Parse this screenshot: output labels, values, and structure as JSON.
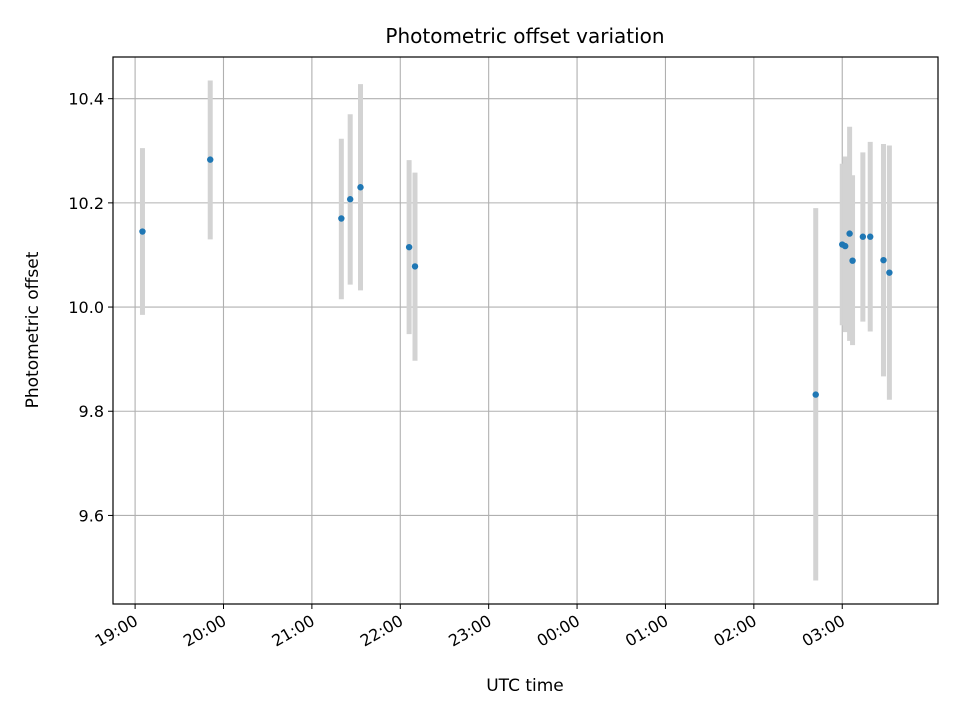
{
  "chart_data": {
    "type": "scatter",
    "title": "Photometric offset variation",
    "xlabel": "UTC time",
    "ylabel": "Photometric offset",
    "x_axis_kind": "time",
    "xlim": [
      "18:45",
      "04:05"
    ],
    "ylim": [
      9.43,
      10.48
    ],
    "grid": true,
    "x_ticks": [
      "19:00",
      "20:00",
      "21:00",
      "22:00",
      "23:00",
      "00:00",
      "01:00",
      "02:00",
      "03:00"
    ],
    "y_ticks": [
      9.6,
      9.8,
      10.0,
      10.2,
      10.4
    ],
    "y_tick_labels": [
      "9.6",
      "9.8",
      "10.0",
      "10.2",
      "10.4"
    ],
    "point_color": "#1f77b4",
    "errorbar_color": "#d3d3d3",
    "points": [
      {
        "t": "19:05",
        "y": 10.145,
        "lo": 9.985,
        "hi": 10.305
      },
      {
        "t": "19:51",
        "y": 10.283,
        "lo": 10.13,
        "hi": 10.435
      },
      {
        "t": "21:20",
        "y": 10.17,
        "lo": 10.015,
        "hi": 10.323
      },
      {
        "t": "21:26",
        "y": 10.207,
        "lo": 10.043,
        "hi": 10.37
      },
      {
        "t": "21:33",
        "y": 10.23,
        "lo": 10.032,
        "hi": 10.428
      },
      {
        "t": "22:06",
        "y": 10.115,
        "lo": 9.948,
        "hi": 10.282
      },
      {
        "t": "22:10",
        "y": 10.078,
        "lo": 9.897,
        "hi": 10.258
      },
      {
        "t": "02:42",
        "y": 9.832,
        "lo": 9.475,
        "hi": 10.19
      },
      {
        "t": "03:00",
        "y": 10.12,
        "lo": 9.965,
        "hi": 10.275
      },
      {
        "t": "03:02",
        "y": 10.117,
        "lo": 9.952,
        "hi": 10.289
      },
      {
        "t": "03:05",
        "y": 10.141,
        "lo": 9.935,
        "hi": 10.346
      },
      {
        "t": "03:07",
        "y": 10.089,
        "lo": 9.927,
        "hi": 10.253
      },
      {
        "t": "03:14",
        "y": 10.135,
        "lo": 9.972,
        "hi": 10.297
      },
      {
        "t": "03:19",
        "y": 10.135,
        "lo": 9.953,
        "hi": 10.317
      },
      {
        "t": "03:28",
        "y": 10.09,
        "lo": 9.867,
        "hi": 10.313
      },
      {
        "t": "03:32",
        "y": 10.066,
        "lo": 9.822,
        "hi": 10.31
      }
    ]
  }
}
